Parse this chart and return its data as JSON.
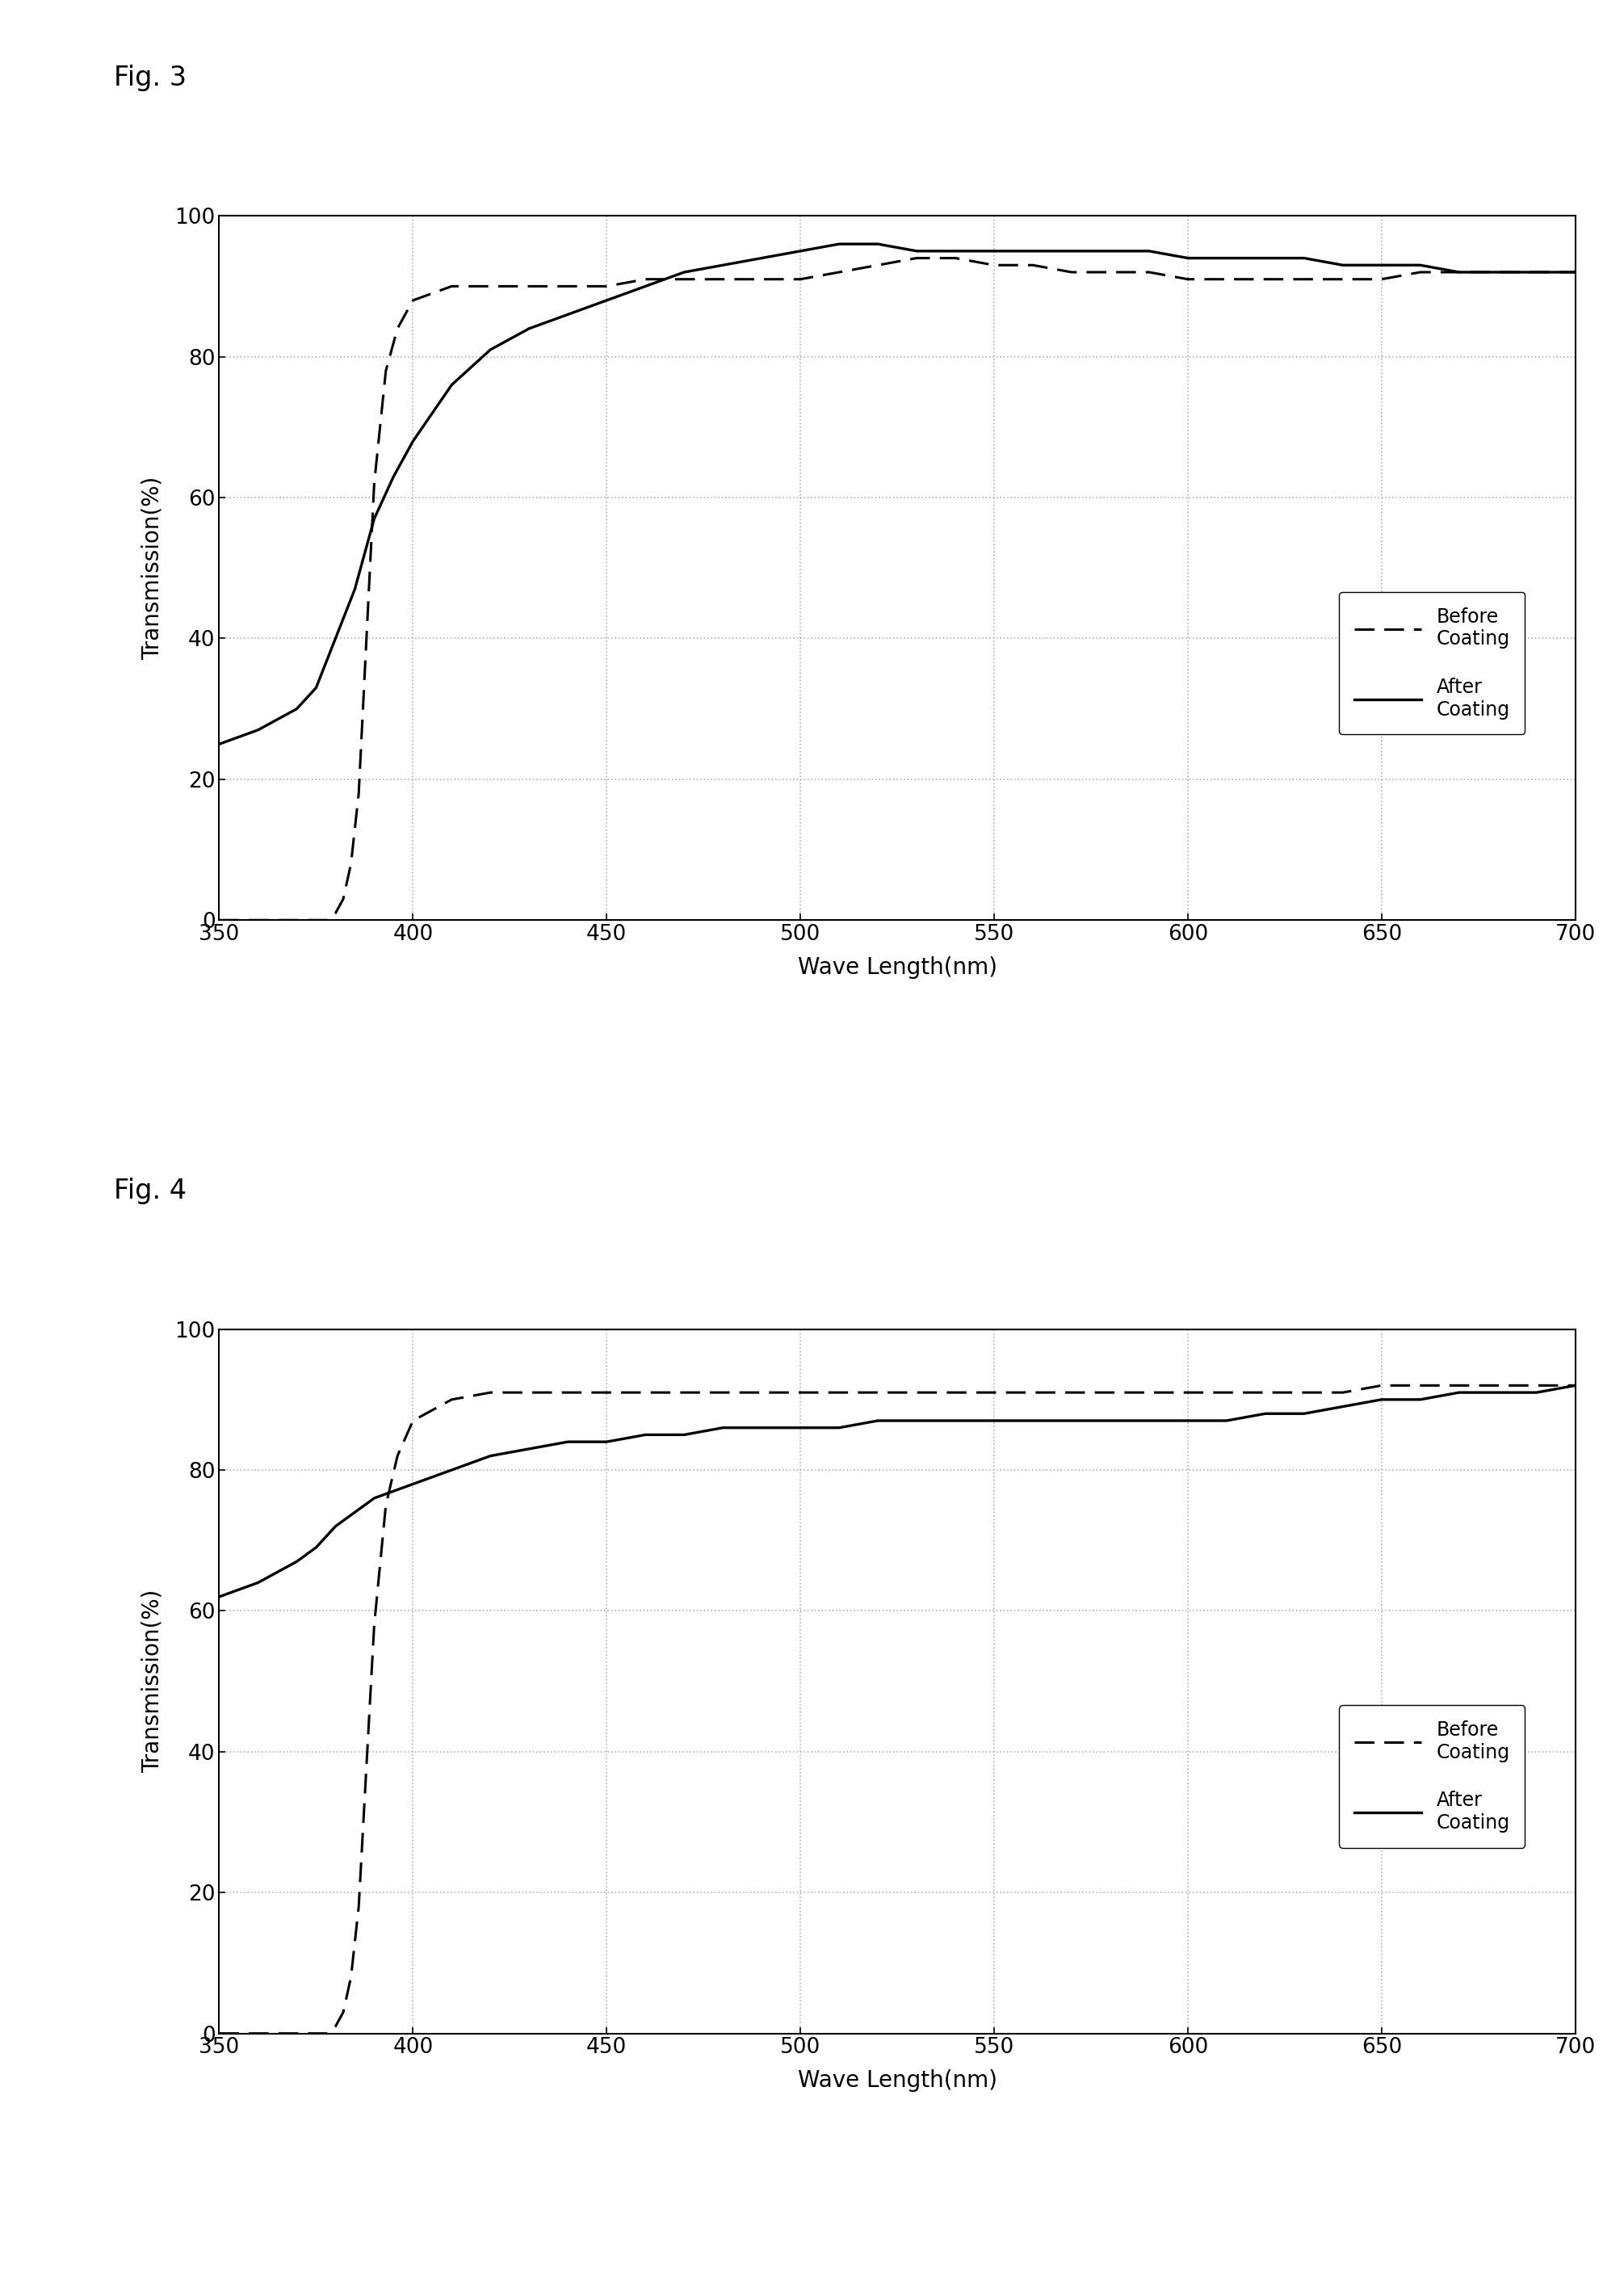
{
  "fig3_label": "Fig. 3",
  "fig4_label": "Fig. 4",
  "xlabel": "Wave Length(nm)",
  "ylabel": "Transmission(%)",
  "xlim": [
    350,
    700
  ],
  "ylim": [
    0,
    100
  ],
  "xticks": [
    350,
    400,
    450,
    500,
    550,
    600,
    650,
    700
  ],
  "yticks": [
    0,
    20,
    40,
    60,
    80,
    100
  ],
  "legend_before": "Before\nCoating",
  "legend_after": "After\nCoating",
  "fig3": {
    "before_x": [
      350,
      360,
      370,
      373,
      376,
      378,
      380,
      382,
      384,
      386,
      388,
      390,
      393,
      396,
      400,
      410,
      420,
      430,
      440,
      450,
      460,
      470,
      480,
      490,
      500,
      510,
      520,
      530,
      540,
      550,
      560,
      570,
      580,
      590,
      600,
      610,
      620,
      630,
      640,
      650,
      660,
      670,
      680,
      690,
      700
    ],
    "before_y": [
      0,
      0,
      0,
      0,
      0,
      0,
      1,
      3,
      8,
      18,
      40,
      62,
      78,
      84,
      88,
      90,
      90,
      90,
      90,
      90,
      91,
      91,
      91,
      91,
      91,
      92,
      93,
      94,
      94,
      93,
      93,
      92,
      92,
      92,
      91,
      91,
      91,
      91,
      91,
      91,
      92,
      92,
      92,
      92,
      92
    ],
    "after_x": [
      350,
      360,
      370,
      375,
      380,
      385,
      390,
      395,
      400,
      410,
      420,
      430,
      440,
      450,
      460,
      470,
      480,
      490,
      500,
      510,
      520,
      530,
      540,
      550,
      560,
      570,
      580,
      590,
      600,
      610,
      620,
      630,
      640,
      650,
      660,
      670,
      680,
      690,
      700
    ],
    "after_y": [
      25,
      27,
      30,
      33,
      40,
      47,
      57,
      63,
      68,
      76,
      81,
      84,
      86,
      88,
      90,
      92,
      93,
      94,
      95,
      96,
      96,
      95,
      95,
      95,
      95,
      95,
      95,
      95,
      94,
      94,
      94,
      94,
      93,
      93,
      93,
      92,
      92,
      92,
      92
    ]
  },
  "fig4": {
    "before_x": [
      350,
      360,
      370,
      373,
      376,
      378,
      380,
      382,
      384,
      386,
      388,
      390,
      393,
      396,
      400,
      410,
      420,
      430,
      440,
      450,
      460,
      470,
      480,
      490,
      500,
      510,
      520,
      530,
      540,
      550,
      560,
      570,
      580,
      590,
      600,
      610,
      620,
      630,
      640,
      650,
      660,
      670,
      680,
      690,
      700
    ],
    "before_y": [
      0,
      0,
      0,
      0,
      0,
      0,
      1,
      3,
      8,
      18,
      38,
      58,
      75,
      82,
      87,
      90,
      91,
      91,
      91,
      91,
      91,
      91,
      91,
      91,
      91,
      91,
      91,
      91,
      91,
      91,
      91,
      91,
      91,
      91,
      91,
      91,
      91,
      91,
      91,
      92,
      92,
      92,
      92,
      92,
      92
    ],
    "after_x": [
      350,
      360,
      370,
      375,
      380,
      385,
      390,
      395,
      400,
      410,
      420,
      430,
      440,
      450,
      460,
      470,
      480,
      490,
      500,
      510,
      520,
      530,
      540,
      550,
      560,
      570,
      580,
      590,
      600,
      610,
      620,
      630,
      640,
      650,
      660,
      670,
      680,
      690,
      700
    ],
    "after_y": [
      62,
      64,
      67,
      69,
      72,
      74,
      76,
      77,
      78,
      80,
      82,
      83,
      84,
      84,
      85,
      85,
      86,
      86,
      86,
      86,
      87,
      87,
      87,
      87,
      87,
      87,
      87,
      87,
      87,
      87,
      88,
      88,
      89,
      90,
      90,
      91,
      91,
      91,
      92
    ]
  },
  "background_color": "#ffffff",
  "line_color": "#000000",
  "grid_color": "#aaaaaa",
  "fig_label_fontsize": 24,
  "axis_label_fontsize": 20,
  "tick_fontsize": 19,
  "legend_fontsize": 17,
  "ylabel_rotation": 90
}
